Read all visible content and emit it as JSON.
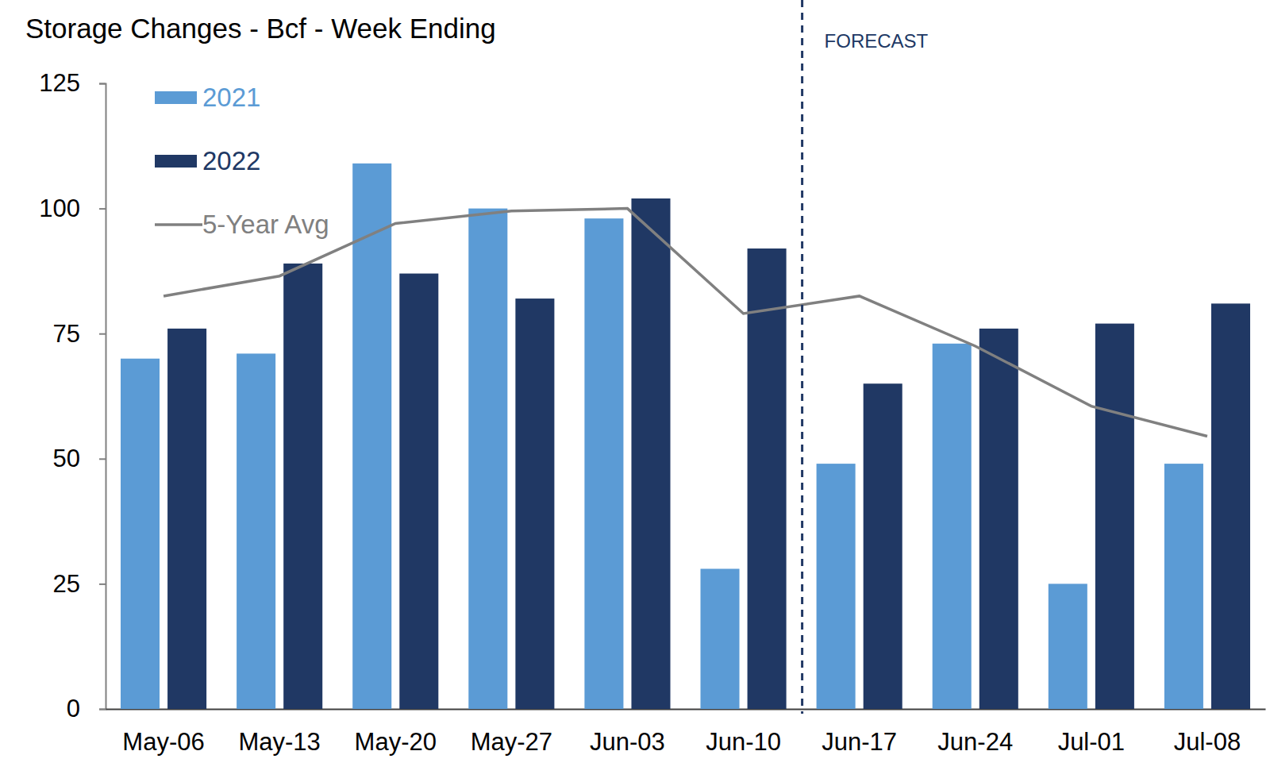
{
  "chart_data": {
    "type": "bar",
    "title": "Storage Changes - Bcf - Week Ending",
    "categories": [
      "May-06",
      "May-13",
      "May-20",
      "May-27",
      "Jun-03",
      "Jun-10",
      "Jun-17",
      "Jun-24",
      "Jul-01",
      "Jul-08"
    ],
    "series": [
      {
        "name": "2021",
        "color": "#5b9bd5",
        "values": [
          70,
          71,
          109,
          100,
          98,
          28,
          49,
          73,
          25,
          49
        ]
      },
      {
        "name": "2022",
        "color": "#203864",
        "values": [
          76,
          89,
          87,
          82,
          102,
          92,
          65,
          76,
          77,
          81
        ]
      },
      {
        "name": "5-Year Avg",
        "color": "#808080",
        "type": "line",
        "values": [
          82.5,
          86.5,
          97,
          99.5,
          100,
          79,
          82.5,
          72.5,
          60.5,
          54.5
        ]
      }
    ],
    "ylim": [
      0,
      125
    ],
    "yticks": [
      0,
      25,
      50,
      75,
      100,
      125
    ],
    "grid": false,
    "legend": "upper left",
    "annotations": [
      {
        "text": "FORECAST",
        "category": "Jun-17"
      }
    ]
  }
}
